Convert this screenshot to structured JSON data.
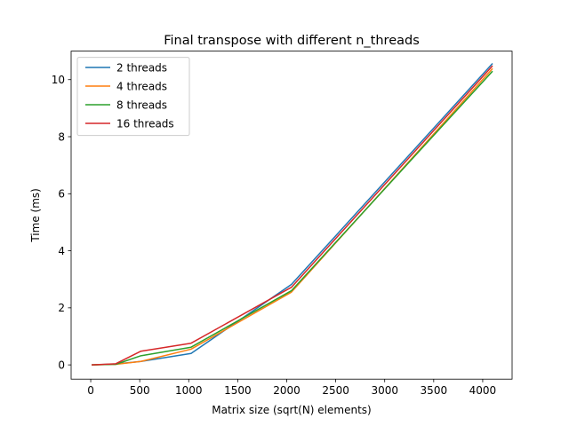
{
  "chart_data": {
    "type": "line",
    "title": "Final transpose with different n_threads",
    "xlabel": "Matrix size (sqrt(N) elements)",
    "ylabel": "Time (ms)",
    "xlim": [
      -200,
      4300
    ],
    "ylim": [
      -0.5,
      11.0
    ],
    "xticks": [
      0,
      500,
      1000,
      1500,
      2000,
      2500,
      3000,
      3500,
      4000
    ],
    "yticks": [
      0,
      2,
      4,
      6,
      8,
      10
    ],
    "grid": false,
    "legend_position": "upper-left",
    "x": [
      16,
      256,
      512,
      1024,
      2048,
      4096
    ],
    "series": [
      {
        "name": "2 threads",
        "color": "#1f77b4",
        "values": [
          0.0,
          0.03,
          0.12,
          0.4,
          2.82,
          10.55
        ]
      },
      {
        "name": "4 threads",
        "color": "#ff7f0e",
        "values": [
          0.0,
          0.02,
          0.12,
          0.55,
          2.55,
          10.37
        ]
      },
      {
        "name": "8 threads",
        "color": "#2ca02c",
        "values": [
          0.0,
          0.02,
          0.32,
          0.62,
          2.6,
          10.28
        ]
      },
      {
        "name": "16 threads",
        "color": "#d62728",
        "values": [
          0.0,
          0.04,
          0.48,
          0.76,
          2.72,
          10.47
        ]
      }
    ]
  }
}
